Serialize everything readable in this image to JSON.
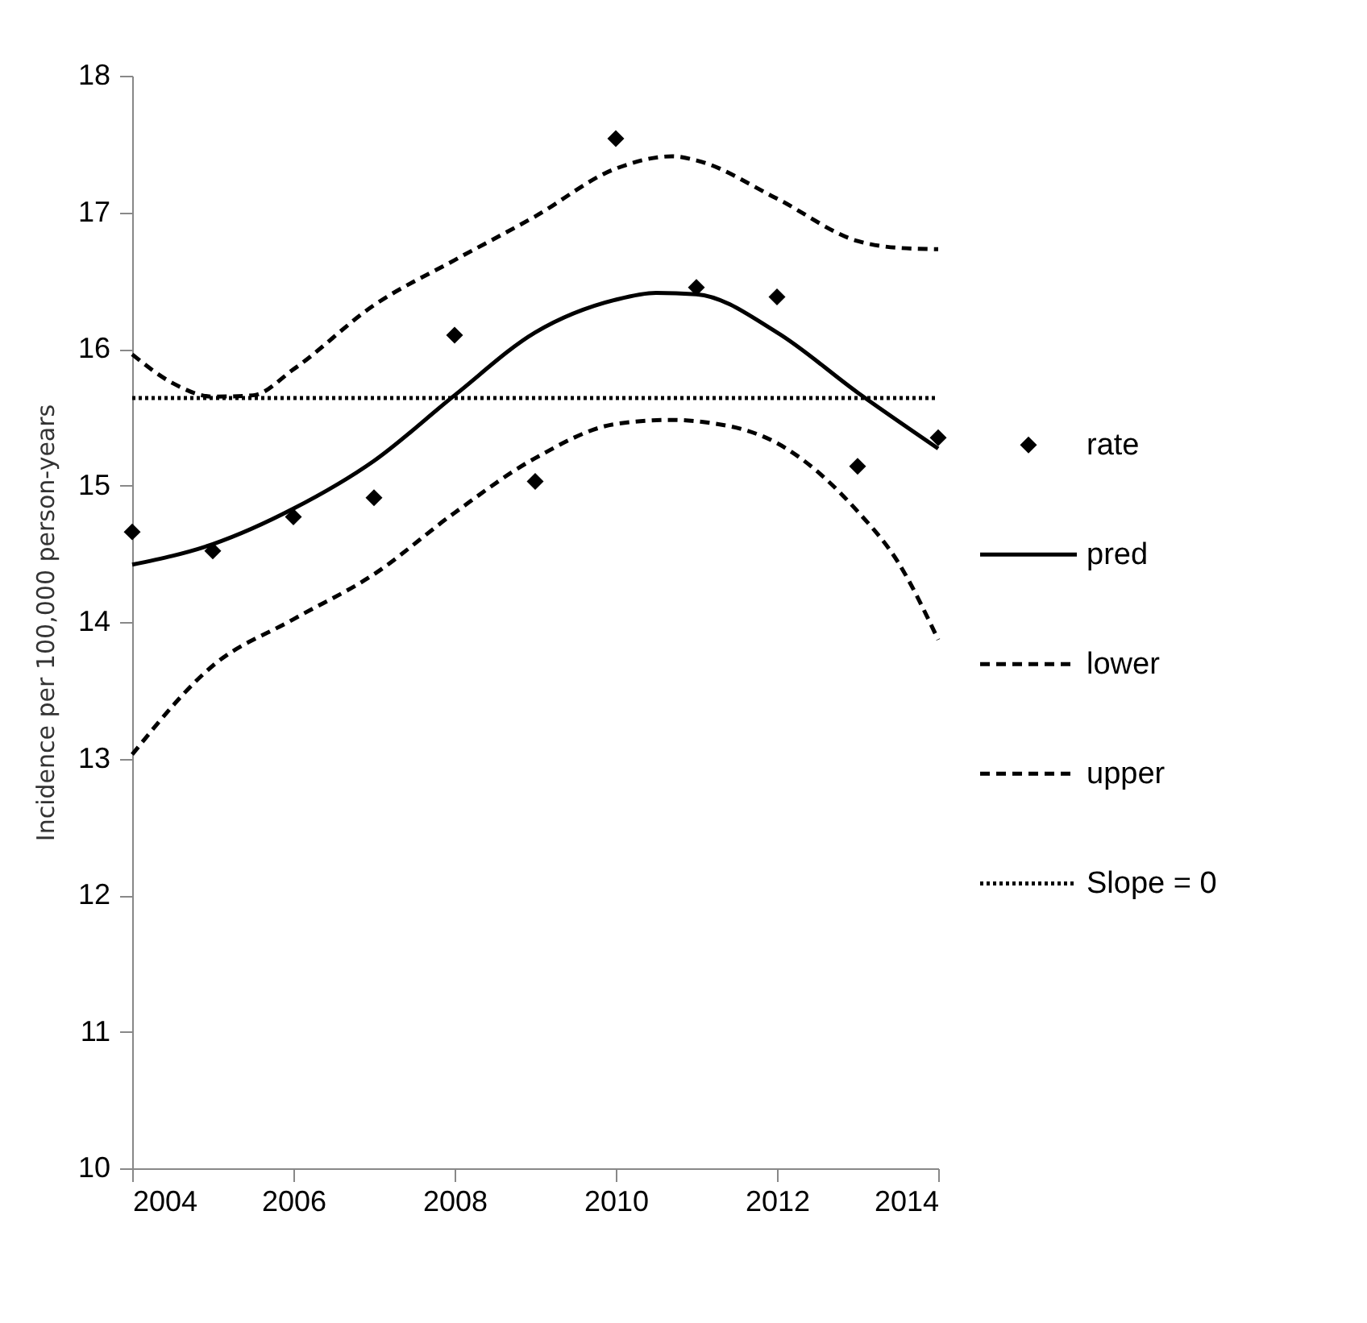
{
  "chart_data": {
    "type": "line",
    "ylabel": "Incidence per 100,000 person-years",
    "xlim": [
      2004,
      2014
    ],
    "xticks": [
      2004,
      2006,
      2008,
      2010,
      2012,
      2014
    ],
    "ylim": [
      10,
      18
    ],
    "yticks": [
      10,
      11,
      12,
      13,
      14,
      15,
      16,
      17,
      18
    ],
    "grid": false,
    "legend": "right",
    "series": [
      {
        "name": "rate",
        "type": "scatter",
        "marker": "diamond",
        "color": "#000000",
        "x": [
          2004,
          2005,
          2006,
          2007,
          2008,
          2009,
          2010,
          2011,
          2012,
          2013,
          2014
        ],
        "values": [
          14.66,
          14.52,
          14.77,
          14.91,
          16.1,
          15.03,
          17.54,
          16.45,
          16.38,
          15.14,
          15.35
        ]
      },
      {
        "name": "pred",
        "line_style": "solid",
        "color": "#000000",
        "x": [
          2004,
          2005,
          2006,
          2007,
          2008,
          2009,
          2010,
          2010.5,
          2011,
          2012,
          2013,
          2014
        ],
        "values": [
          14.42,
          14.57,
          14.83,
          15.18,
          15.66,
          16.12,
          16.36,
          16.41,
          16.4,
          16.12,
          15.68,
          15.27
        ]
      },
      {
        "name": "lower",
        "line_style": "dashed",
        "color": "#000000",
        "x": [
          2004,
          2005,
          2006,
          2007,
          2008,
          2009,
          2010,
          2010.7,
          2011,
          2012,
          2013,
          2013.5,
          2014
        ],
        "values": [
          13.03,
          13.68,
          14.02,
          14.35,
          14.8,
          15.2,
          15.45,
          15.48,
          15.47,
          15.31,
          14.81,
          14.44,
          13.87
        ]
      },
      {
        "name": "upper",
        "line_style": "dashed",
        "color": "#000000",
        "x": [
          2004,
          2004.5,
          2005,
          2005.5,
          2006,
          2007,
          2008,
          2009,
          2010,
          2010.7,
          2011,
          2012,
          2013,
          2013.5,
          2014
        ],
        "values": [
          15.96,
          15.75,
          15.65,
          15.66,
          15.85,
          16.32,
          16.65,
          16.97,
          17.32,
          17.41,
          17.38,
          17.1,
          16.79,
          16.74,
          16.73
        ]
      },
      {
        "name": "Slope = 0",
        "line_style": "dotted",
        "color": "#000000",
        "x": [
          2004,
          2014
        ],
        "values": [
          15.64,
          15.64
        ]
      }
    ]
  }
}
